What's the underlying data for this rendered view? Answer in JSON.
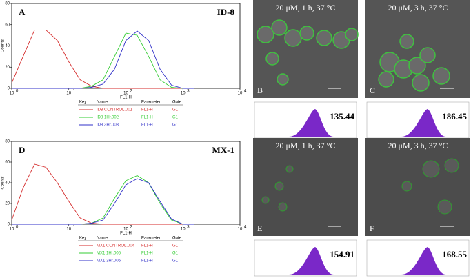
{
  "chart_data": [
    {
      "type": "line",
      "panel": "A",
      "label": "ID-8",
      "xlabel": "FL1-H",
      "ylabel": "Counts",
      "xlog": true,
      "x": [
        1,
        1.58,
        2.51,
        3.98,
        6.31,
        10,
        15.8,
        25.1,
        39.8,
        63.1,
        100,
        158,
        251,
        398,
        631,
        1000,
        1585
      ],
      "xlim": [
        1,
        10000
      ],
      "xticks": [
        {
          "value": 1,
          "label": "10",
          "exp": "0"
        },
        {
          "value": 10,
          "label": "10",
          "exp": "1"
        },
        {
          "value": 100,
          "label": "10",
          "exp": "2"
        },
        {
          "value": 1000,
          "label": "10",
          "exp": "3"
        },
        {
          "value": 10000,
          "label": "10",
          "exp": "4"
        }
      ],
      "ylim": [
        0,
        80
      ],
      "yticks": [
        0,
        20,
        40,
        60,
        80
      ],
      "legend_header": [
        "Key",
        "Name",
        "Parameter",
        "Gate"
      ],
      "series": [
        {
          "name": "ID8 CONTROL.001",
          "parameter": "FL1-H",
          "gate": "G1",
          "color": "#d42a2a",
          "values": [
            5,
            30,
            55,
            55,
            45,
            25,
            8,
            2,
            0,
            0,
            0,
            0,
            0,
            0,
            0,
            0,
            0
          ]
        },
        {
          "name": "ID8 1Hr.002",
          "parameter": "FL1-H",
          "gate": "G1",
          "color": "#33cc33",
          "values": [
            0,
            0,
            0,
            0,
            0,
            0,
            0,
            2,
            8,
            30,
            52,
            50,
            30,
            8,
            1,
            0,
            0
          ]
        },
        {
          "name": "ID8 3Hr.003",
          "parameter": "FL1-H",
          "gate": "G1",
          "color": "#3030c8",
          "values": [
            0,
            0,
            0,
            0,
            0,
            0,
            0,
            1,
            4,
            18,
            45,
            54,
            45,
            18,
            3,
            0,
            0
          ]
        }
      ]
    },
    {
      "type": "line",
      "panel": "D",
      "label": "MX-1",
      "xlabel": "FL1-H",
      "ylabel": "Counts",
      "xlog": true,
      "x": [
        1,
        1.58,
        2.51,
        3.98,
        6.31,
        10,
        15.8,
        25.1,
        39.8,
        63.1,
        100,
        158,
        251,
        398,
        631,
        1000,
        1585
      ],
      "xlim": [
        1,
        10000
      ],
      "xticks": [
        {
          "value": 1,
          "label": "10",
          "exp": "0"
        },
        {
          "value": 10,
          "label": "10",
          "exp": "1"
        },
        {
          "value": 100,
          "label": "10",
          "exp": "2"
        },
        {
          "value": 1000,
          "label": "10",
          "exp": "3"
        },
        {
          "value": 10000,
          "label": "10",
          "exp": "4"
        }
      ],
      "ylim": [
        0,
        80
      ],
      "yticks": [
        0,
        20,
        40,
        60,
        80
      ],
      "legend_header": [
        "Key",
        "Name",
        "Parameter",
        "Gate"
      ],
      "series": [
        {
          "name": "MX1 CONTROL.004",
          "parameter": "FL1-H",
          "gate": "G1",
          "color": "#d42a2a",
          "values": [
            4,
            35,
            58,
            55,
            40,
            22,
            6,
            1,
            0,
            0,
            0,
            0,
            0,
            0,
            0,
            0,
            0
          ]
        },
        {
          "name": "MX1 1Hr.005",
          "parameter": "FL1-H",
          "gate": "G1",
          "color": "#33cc33",
          "values": [
            0,
            0,
            0,
            0,
            0,
            0,
            0,
            1,
            6,
            25,
            42,
            47,
            40,
            20,
            4,
            0,
            0
          ]
        },
        {
          "name": "MX1 3Hr.006",
          "parameter": "FL1-H",
          "gate": "G1",
          "color": "#3030c8",
          "values": [
            0,
            0,
            0,
            0,
            0,
            0,
            0,
            1,
            4,
            20,
            38,
            44,
            40,
            22,
            5,
            0,
            0
          ]
        }
      ]
    }
  ],
  "micrographs": [
    {
      "caption": "20 μM, 1 h, 37 °C",
      "letter": "B",
      "mfi": "135.44"
    },
    {
      "caption": "20 μM, 3 h, 37 °C",
      "letter": "C",
      "mfi": "186.45"
    },
    {
      "caption": "20 μM, 1 h, 37 °C",
      "letter": "E",
      "mfi": "154.91"
    },
    {
      "caption": "20 μM, 3 h, 37 °C",
      "letter": "F",
      "mfi": "168.55"
    }
  ]
}
